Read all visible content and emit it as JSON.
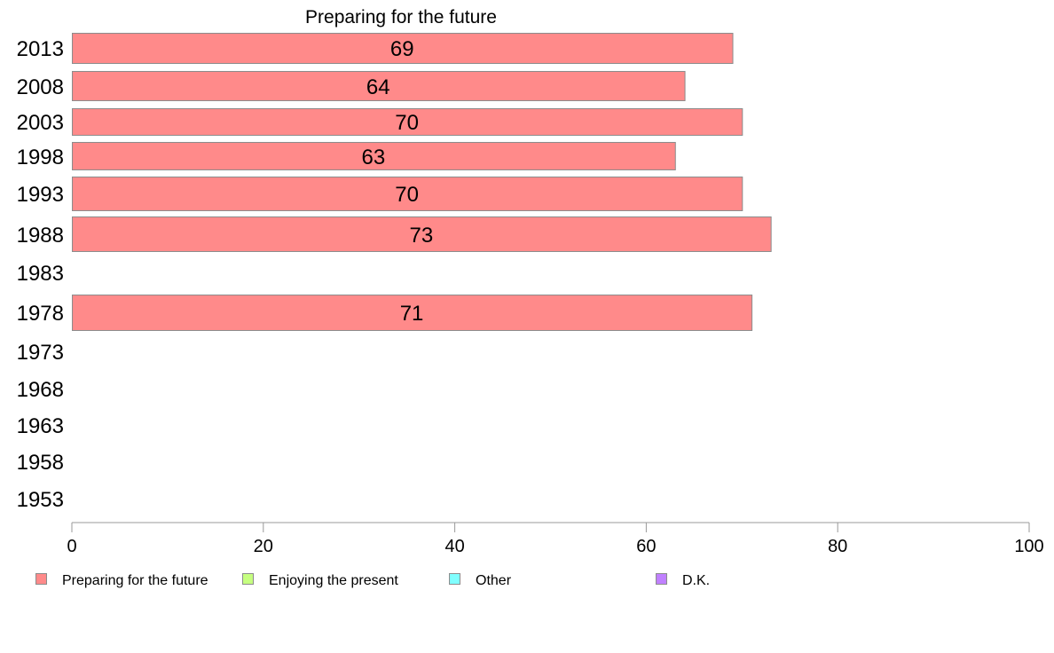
{
  "chart_data": {
    "type": "bar",
    "orientation": "horizontal",
    "title": "Preparing for the future",
    "categories": [
      "2013",
      "2008",
      "2003",
      "1998",
      "1993",
      "1988",
      "1983",
      "1978",
      "1973",
      "1968",
      "1963",
      "1958",
      "1953"
    ],
    "series": [
      {
        "name": "Preparing for the future",
        "color": "#ff8a8a",
        "values": [
          69,
          64,
          70,
          63,
          70,
          73,
          null,
          71,
          null,
          null,
          null,
          null,
          null
        ],
        "labels": [
          "69",
          "64",
          "70",
          "63",
          "70",
          "73",
          "",
          "71",
          "",
          "",
          "",
          "",
          ""
        ]
      }
    ],
    "xlim": [
      0,
      100
    ],
    "xticks": [
      "0",
      "20",
      "40",
      "60",
      "80",
      "100"
    ],
    "xlabel": "",
    "ylabel": "",
    "grid": false,
    "legend_position": "bottom-left",
    "legend": [
      {
        "label": "Preparing for the future",
        "color": "#ff8a8a"
      },
      {
        "label": "Enjoying the present",
        "color": "#c6ff80"
      },
      {
        "label": "Other",
        "color": "#80ffff"
      },
      {
        "label": "D.K.",
        "color": "#c080ff"
      }
    ]
  }
}
